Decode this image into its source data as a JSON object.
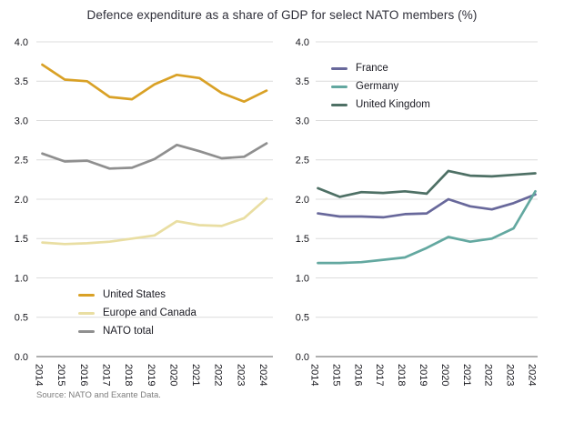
{
  "title": "Defence expenditure as a share of GDP for select NATO members (%)",
  "source": "Source: NATO and Exante Data.",
  "style": {
    "grid_color": "#dcdcdc",
    "axis_color": "#7f7f7f",
    "text_color": "#16161c",
    "title_color": "#2e2e38",
    "source_color": "#7d7d7d"
  },
  "chart_data": [
    {
      "type": "line",
      "title": "Defence expenditure as a share of GDP for select NATO members (%)",
      "xlabel": "",
      "ylabel": "",
      "ylim": [
        0.0,
        4.0
      ],
      "ytick_step": 0.5,
      "grid": true,
      "legend_position": "bottom-left",
      "categories": [
        "2014",
        "2015",
        "2016",
        "2017",
        "2018",
        "2019",
        "2020",
        "2021",
        "2022",
        "2023",
        "2024"
      ],
      "series": [
        {
          "name": "United States",
          "color": "#D9A126",
          "values": [
            3.71,
            3.52,
            3.5,
            3.3,
            3.27,
            3.46,
            3.58,
            3.54,
            3.35,
            3.24,
            3.38
          ]
        },
        {
          "name": "Europe and Canada",
          "color": "#E9DEA2",
          "values": [
            1.45,
            1.43,
            1.44,
            1.46,
            1.5,
            1.54,
            1.72,
            1.67,
            1.66,
            1.76,
            2.01
          ]
        },
        {
          "name": "NATO total",
          "color": "#8F8F8F",
          "values": [
            2.58,
            2.48,
            2.49,
            2.39,
            2.4,
            2.51,
            2.69,
            2.61,
            2.52,
            2.54,
            2.71
          ]
        }
      ]
    },
    {
      "type": "line",
      "title": "",
      "xlabel": "",
      "ylabel": "",
      "ylim": [
        0.0,
        4.0
      ],
      "ytick_step": 0.5,
      "grid": true,
      "legend_position": "top-left",
      "categories": [
        "2014",
        "2015",
        "2016",
        "2017",
        "2018",
        "2019",
        "2020",
        "2021",
        "2022",
        "2023",
        "2024"
      ],
      "series": [
        {
          "name": "France",
          "color": "#68689B",
          "values": [
            1.82,
            1.78,
            1.78,
            1.77,
            1.81,
            1.82,
            2.0,
            1.91,
            1.87,
            1.95,
            2.06
          ]
        },
        {
          "name": "Germany",
          "color": "#63A8A0",
          "values": [
            1.19,
            1.19,
            1.2,
            1.23,
            1.26,
            1.38,
            1.52,
            1.46,
            1.5,
            1.63,
            2.1
          ]
        },
        {
          "name": "United Kingdom",
          "color": "#4E7065",
          "values": [
            2.14,
            2.03,
            2.09,
            2.08,
            2.1,
            2.07,
            2.36,
            2.3,
            2.29,
            2.31,
            2.33
          ]
        }
      ]
    }
  ]
}
